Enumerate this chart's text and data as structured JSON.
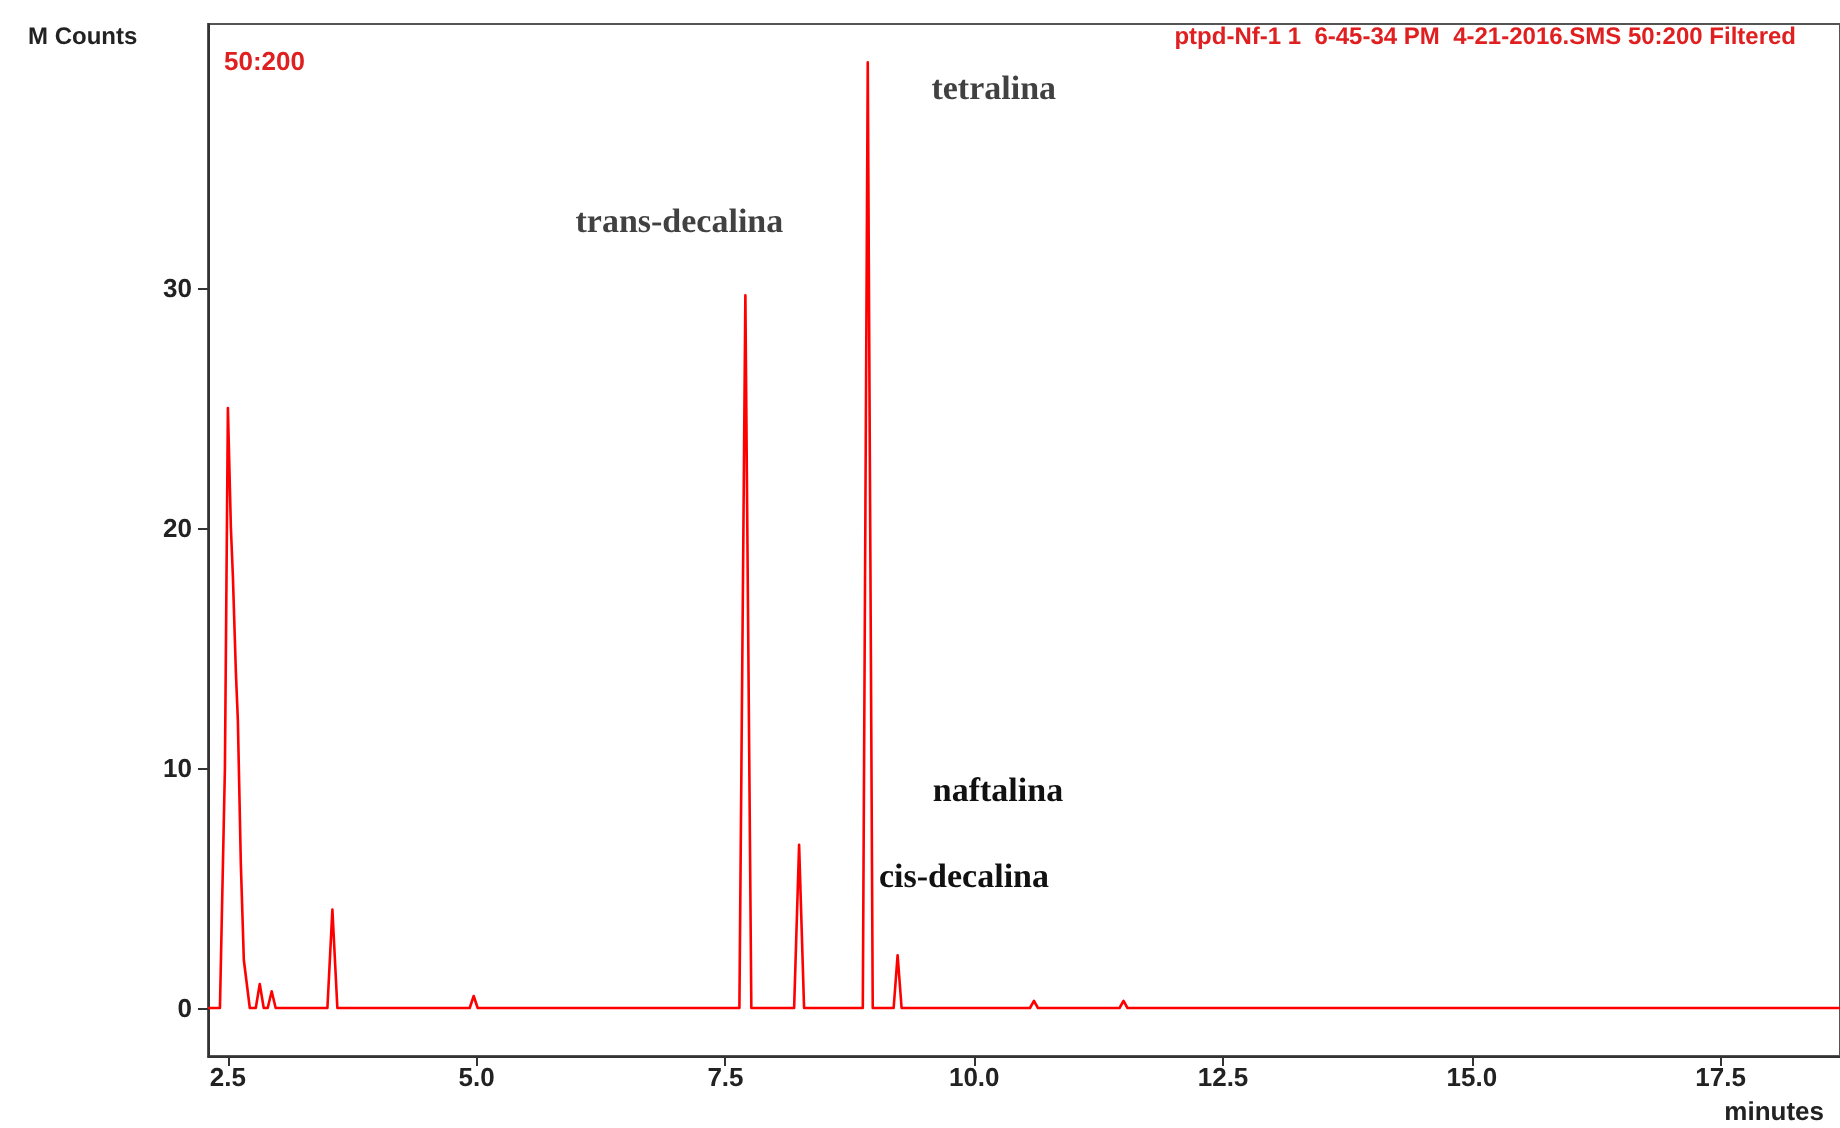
{
  "chart_data": {
    "type": "line",
    "title": "ptpd-Nf-1 1  6-45-34 PM  4-21-2016.SMS 50:200 Filtered",
    "subtitle": "50:200",
    "xlabel": "minutes",
    "ylabel": "M Counts",
    "series": [
      {
        "color": "#ff0000",
        "x": [
          2.3,
          2.42,
          2.47,
          2.5,
          2.53,
          2.55,
          2.58,
          2.6,
          2.63,
          2.66,
          2.72,
          2.78,
          2.82,
          2.86,
          2.9,
          2.94,
          2.98,
          3.5,
          3.55,
          3.6,
          4.93,
          4.97,
          5.01,
          7.64,
          7.7,
          7.76,
          8.19,
          8.24,
          8.29,
          8.88,
          8.93,
          8.98,
          9.19,
          9.23,
          9.27,
          10.56,
          10.6,
          10.64,
          11.46,
          11.5,
          11.54,
          18.7
        ],
        "values": [
          0,
          0,
          10,
          25,
          20,
          18,
          14,
          12,
          6,
          2,
          0,
          0,
          1,
          0,
          0,
          0.7,
          0,
          0,
          4.1,
          0,
          0,
          0.5,
          0,
          0,
          29.7,
          0,
          0,
          6.8,
          0,
          0,
          39.4,
          0,
          0,
          2.2,
          0,
          0,
          0.3,
          0,
          0,
          0.3,
          0,
          0
        ]
      }
    ],
    "xlim": [
      2.3,
      18.7
    ],
    "ylim": [
      -2,
      41
    ],
    "xticks": [
      2.5,
      {
        "value": 5,
        "label": "5.0"
      },
      7.5,
      {
        "value": 10,
        "label": "10.0"
      },
      12.5,
      {
        "value": 15,
        "label": "15.0"
      },
      17.5
    ],
    "yticks": [
      0,
      10,
      20,
      30
    ],
    "grid": false,
    "marker": "none",
    "line_style": "solid",
    "annotations": [
      {
        "text": "trans-decalina",
        "x": 7.7,
        "y": 29.7
      },
      {
        "text": "tetralina",
        "x": 8.93,
        "y": 39.4
      },
      "naftalina",
      "cis-decalina"
    ]
  }
}
